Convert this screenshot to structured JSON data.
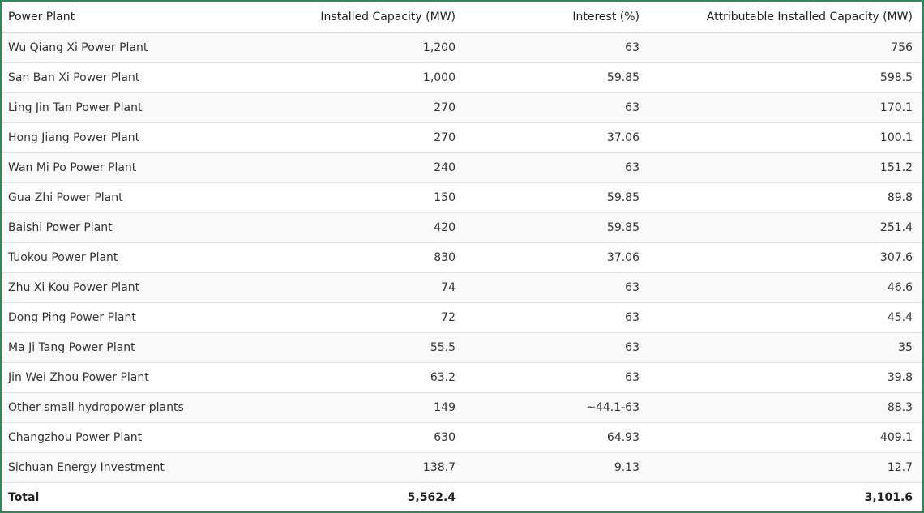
{
  "table": {
    "headers": {
      "plant": "Power Plant",
      "capacity": "Installed Capacity (MW)",
      "interest": "Interest (%)",
      "attributable": "Attributable Installed Capacity (MW)"
    },
    "rows": [
      {
        "plant": "Wu Qiang Xi Power Plant",
        "capacity": "1,200",
        "interest": "63",
        "attributable": "756"
      },
      {
        "plant": "San Ban Xi Power Plant",
        "capacity": "1,000",
        "interest": "59.85",
        "attributable": "598.5"
      },
      {
        "plant": "Ling Jin Tan Power Plant",
        "capacity": "270",
        "interest": "63",
        "attributable": "170.1"
      },
      {
        "plant": "Hong Jiang Power Plant",
        "capacity": "270",
        "interest": "37.06",
        "attributable": "100.1"
      },
      {
        "plant": "Wan Mi Po Power Plant",
        "capacity": "240",
        "interest": "63",
        "attributable": "151.2"
      },
      {
        "plant": "Gua Zhi Power Plant",
        "capacity": "150",
        "interest": "59.85",
        "attributable": "89.8"
      },
      {
        "plant": "Baishi Power Plant",
        "capacity": "420",
        "interest": "59.85",
        "attributable": "251.4"
      },
      {
        "plant": "Tuokou Power Plant",
        "capacity": "830",
        "interest": "37.06",
        "attributable": "307.6"
      },
      {
        "plant": "Zhu Xi Kou Power Plant",
        "capacity": "74",
        "interest": "63",
        "attributable": "46.6"
      },
      {
        "plant": "Dong Ping Power Plant",
        "capacity": "72",
        "interest": "63",
        "attributable": "45.4"
      },
      {
        "plant": "Ma Ji Tang Power Plant",
        "capacity": "55.5",
        "interest": "63",
        "attributable": "35"
      },
      {
        "plant": "Jin Wei Zhou Power Plant",
        "capacity": "63.2",
        "interest": "63",
        "attributable": "39.8"
      },
      {
        "plant": "Other small hydropower plants",
        "capacity": "149",
        "interest": "~44.1-63",
        "attributable": "88.3"
      },
      {
        "plant": "Changzhou Power Plant",
        "capacity": "630",
        "interest": "64.93",
        "attributable": "409.1"
      },
      {
        "plant": "Sichuan Energy Investment",
        "capacity": "138.7",
        "interest": "9.13",
        "attributable": "12.7"
      }
    ],
    "total": {
      "label": "Total",
      "capacity": "5,562.4",
      "interest": "",
      "attributable": "3,101.6"
    }
  },
  "colors": {
    "frame_border": "#2e8b57",
    "stripe": "#f9f9f9",
    "row_divider": "#e0e0e0"
  }
}
